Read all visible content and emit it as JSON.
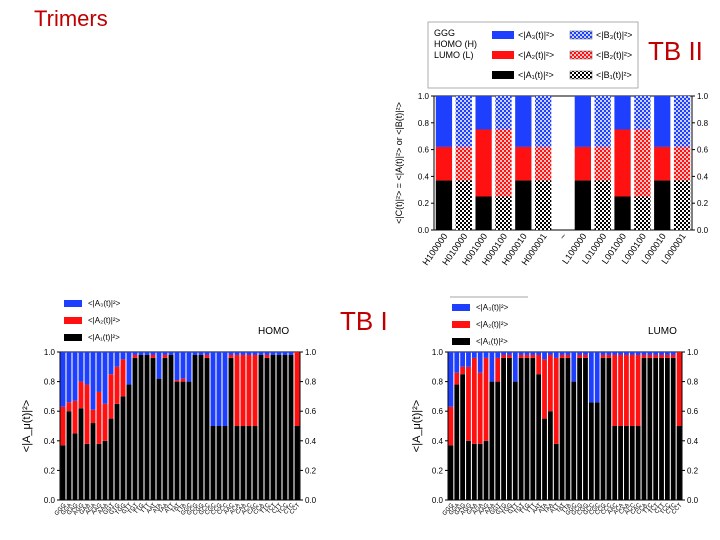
{
  "slide": {
    "title": "Trimers",
    "label_top": "TB II",
    "label_left": "TB I"
  },
  "colors": {
    "blue": "#1f3fff",
    "red": "#ff1111",
    "black": "#000000",
    "axis": "#000000"
  },
  "chart_data": [
    {
      "id": "tb2",
      "type": "bar",
      "stacked": true,
      "title": "",
      "header": [
        "GGG",
        "HOMO (H)",
        "LUMO (L)"
      ],
      "legend": [
        {
          "label": "<|A₁(t)|²>",
          "color": "#000000",
          "hatched": false
        },
        {
          "label": "<|A₂(t)|²>",
          "color": "#ff1111",
          "hatched": false
        },
        {
          "label": "<|A₃(t)|²>",
          "color": "#1f3fff",
          "hatched": false
        },
        {
          "label": "<|B₁(t)|²>",
          "color": "#000000",
          "hatched": true
        },
        {
          "label": "<|B₂(t)|²>",
          "color": "#ff1111",
          "hatched": true
        },
        {
          "label": "<|B₃(t)|²>",
          "color": "#1f3fff",
          "hatched": true
        }
      ],
      "ylabel": "<|C(t)|²> = <|A(t)|²> or <|B(t)|²>",
      "ylim": [
        0,
        1.0
      ],
      "yticks": [
        "0.0",
        "0.2",
        "0.4",
        "0.6",
        "0.8",
        "1.0"
      ],
      "categories": [
        "H100000",
        "H010000",
        "H001000",
        "H000100",
        "H000010",
        "H000001",
        "~",
        "L100000",
        "L010000",
        "L001000",
        "L000100",
        "L000010",
        "L000001"
      ],
      "series": [
        {
          "name": "black",
          "values": [
            0.37,
            0.37,
            0.25,
            0.25,
            0.37,
            0.37,
            0,
            0.37,
            0.37,
            0.25,
            0.25,
            0.37,
            0.37
          ]
        },
        {
          "name": "red",
          "values": [
            0.25,
            0.25,
            0.5,
            0.5,
            0.25,
            0.25,
            0,
            0.25,
            0.25,
            0.5,
            0.5,
            0.25,
            0.25
          ]
        },
        {
          "name": "blue",
          "values": [
            0.38,
            0.38,
            0.25,
            0.25,
            0.38,
            0.38,
            0,
            0.38,
            0.38,
            0.25,
            0.25,
            0.38,
            0.38
          ]
        }
      ],
      "hatched": [
        false,
        true,
        false,
        true,
        false,
        true,
        false,
        false,
        true,
        false,
        true,
        false,
        true
      ]
    },
    {
      "id": "homo",
      "type": "bar",
      "stacked": true,
      "title": "HOMO",
      "legend": [
        {
          "label": "<|A₃(t)|²>",
          "color": "#1f3fff"
        },
        {
          "label": "<|A₂(t)|²>",
          "color": "#ff1111"
        },
        {
          "label": "<|A₁(t)|²>",
          "color": "#000000"
        }
      ],
      "ylabel": "<|A_μ(t)|²>",
      "ylim": [
        0,
        1.0
      ],
      "yticks": [
        "0.0",
        "0.2",
        "0.4",
        "0.6",
        "0.8",
        "1.0"
      ],
      "categories": [
        "GGG",
        "GGA",
        "GAG",
        "AGG",
        "GAA",
        "AGA",
        "AAG",
        "AAA",
        "GGT",
        "GTG",
        "TGG",
        "GTT",
        "TGT",
        "TTG",
        "TTT",
        "AAT",
        "ATA",
        "TAA",
        "ATT",
        "TAT",
        "TTA",
        "GGC",
        "GCG",
        "CGG",
        "GCC",
        "CGC",
        "CCG",
        "CCC",
        "AAC",
        "ACA",
        "CAA",
        "ACC",
        "CAC",
        "CCA",
        "TTC",
        "TCT",
        "CTT",
        "TCC",
        "CTC",
        "CCT"
      ],
      "series": [
        {
          "name": "black",
          "values": [
            0.37,
            0.6,
            0.45,
            0.62,
            0.38,
            0.52,
            0.38,
            0.4,
            0.55,
            0.65,
            0.7,
            0.78,
            0.96,
            0.98,
            0.98,
            0.96,
            0.82,
            0.96,
            0.98,
            0.8,
            0.8,
            0.8,
            0.98,
            0.98,
            0.96,
            0.5,
            0.5,
            0.5,
            0.96,
            0.5,
            0.5,
            0.5,
            0.5,
            0.98,
            0.96,
            0.98,
            0.98,
            0.98,
            0.98,
            0.5
          ]
        },
        {
          "name": "red",
          "values": [
            0.26,
            0.06,
            0.22,
            0.18,
            0.4,
            0.09,
            0.35,
            0.25,
            0.3,
            0.25,
            0.25,
            0.0,
            0.02,
            0.0,
            0.0,
            0.02,
            0.0,
            0.02,
            0.0,
            0.01,
            0.02,
            0.0,
            0.0,
            0.0,
            0.02,
            0.0,
            0.0,
            0.0,
            0.02,
            0.48,
            0.48,
            0.48,
            0.48,
            0.0,
            0.02,
            0.0,
            0.0,
            0.0,
            0.0,
            0.5
          ]
        },
        {
          "name": "blue",
          "values": [
            0.37,
            0.34,
            0.33,
            0.2,
            0.22,
            0.39,
            0.27,
            0.35,
            0.15,
            0.1,
            0.05,
            0.22,
            0.02,
            0.02,
            0.02,
            0.02,
            0.18,
            0.02,
            0.02,
            0.19,
            0.18,
            0.2,
            0.02,
            0.02,
            0.02,
            0.5,
            0.5,
            0.5,
            0.02,
            0.02,
            0.02,
            0.02,
            0.02,
            0.02,
            0.02,
            0.02,
            0.02,
            0.02,
            0.02,
            0.0
          ]
        }
      ]
    },
    {
      "id": "lumo",
      "type": "bar",
      "stacked": true,
      "title": "LUMO",
      "legend": [
        {
          "label": "<|A₃(t)|²>",
          "color": "#1f3fff"
        },
        {
          "label": "<|A₂(t)|²>",
          "color": "#ff1111"
        },
        {
          "label": "<|A₁(t)|²>",
          "color": "#000000"
        }
      ],
      "ylabel": "<|A_μ(t)|²>",
      "ylim": [
        0,
        1.0
      ],
      "yticks": [
        "0.0",
        "0.2",
        "0.4",
        "0.6",
        "0.8",
        "1.0"
      ],
      "categories": [
        "GGG",
        "GGA",
        "GAG",
        "AGG",
        "GAA",
        "AGA",
        "AAG",
        "AAA",
        "GGT",
        "GTG",
        "TGG",
        "GTT",
        "TGT",
        "TTG",
        "TTT",
        "AAT",
        "ATA",
        "TAA",
        "ATT",
        "TAT",
        "TTA",
        "GGC",
        "GCG",
        "CGG",
        "GCC",
        "CGC",
        "CCG",
        "CCC",
        "AAC",
        "ACA",
        "CAA",
        "ACC",
        "CAC",
        "CCA",
        "TTC",
        "TCT",
        "CTT",
        "TCC",
        "CTC",
        "CCT"
      ],
      "series": [
        {
          "name": "black",
          "values": [
            0.37,
            0.78,
            0.85,
            0.4,
            0.38,
            0.38,
            0.4,
            0.8,
            0.8,
            0.96,
            0.96,
            0.8,
            0.96,
            0.96,
            0.96,
            0.85,
            0.55,
            0.6,
            0.38,
            0.96,
            0.96,
            0.8,
            0.96,
            0.96,
            0.66,
            0.66,
            0.96,
            0.96,
            0.5,
            0.5,
            0.5,
            0.5,
            0.5,
            0.96,
            0.96,
            0.96,
            0.96,
            0.96,
            0.96,
            0.5
          ]
        },
        {
          "name": "red",
          "values": [
            0.26,
            0.08,
            0.05,
            0.5,
            0.58,
            0.48,
            0.56,
            0.0,
            0.16,
            0.02,
            0.02,
            0.0,
            0.02,
            0.02,
            0.02,
            0.13,
            0.4,
            0.38,
            0.58,
            0.02,
            0.02,
            0.0,
            0.02,
            0.02,
            0.0,
            0.0,
            0.02,
            0.02,
            0.48,
            0.48,
            0.48,
            0.48,
            0.48,
            0.02,
            0.02,
            0.02,
            0.02,
            0.02,
            0.02,
            0.5
          ]
        },
        {
          "name": "blue",
          "values": [
            0.37,
            0.14,
            0.1,
            0.1,
            0.04,
            0.14,
            0.04,
            0.2,
            0.04,
            0.02,
            0.02,
            0.2,
            0.02,
            0.02,
            0.02,
            0.02,
            0.05,
            0.02,
            0.04,
            0.02,
            0.02,
            0.2,
            0.02,
            0.02,
            0.34,
            0.34,
            0.02,
            0.02,
            0.02,
            0.02,
            0.02,
            0.02,
            0.02,
            0.02,
            0.02,
            0.02,
            0.02,
            0.02,
            0.02,
            0.0
          ]
        }
      ]
    }
  ]
}
